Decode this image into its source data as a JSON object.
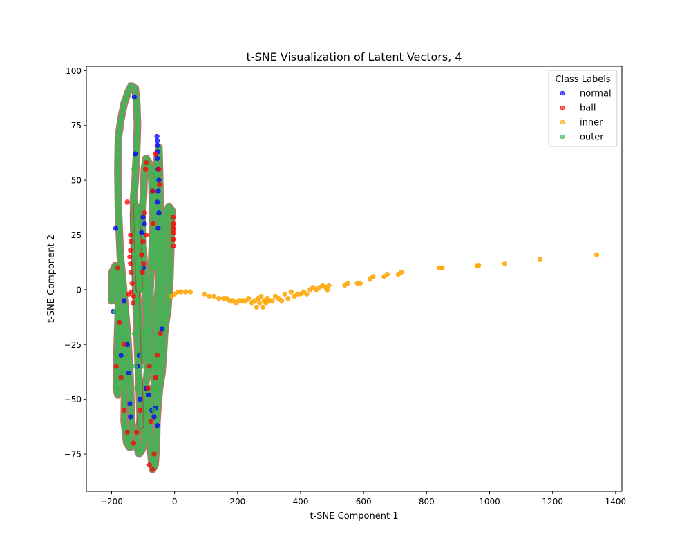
{
  "chart_data": {
    "type": "scatter",
    "title": "t-SNE Visualization of Latent Vectors, 4",
    "xlabel": "t-SNE Component 1",
    "ylabel": "t-SNE Component 2",
    "xlim": [
      -280,
      1420
    ],
    "ylim": [
      -92,
      102
    ],
    "xticks": [
      -200,
      0,
      200,
      400,
      600,
      800,
      1000,
      1200,
      1400
    ],
    "xtick_labels": [
      "−200",
      "0",
      "200",
      "400",
      "600",
      "800",
      "1000",
      "1200",
      "1400"
    ],
    "yticks": [
      -75,
      -50,
      -25,
      0,
      25,
      50,
      75,
      100
    ],
    "ytick_labels": [
      "−75",
      "−50",
      "−25",
      "0",
      "25",
      "50",
      "75",
      "100"
    ],
    "grid": false,
    "legend": {
      "title": "Class Labels",
      "position": "top-right"
    },
    "series": [
      {
        "name": "normal",
        "color": "#0000ff",
        "points": [
          [
            -56,
            70
          ],
          [
            -55,
            68
          ],
          [
            -54,
            66
          ],
          [
            -53,
            63
          ],
          [
            -55,
            60
          ],
          [
            -52,
            55
          ],
          [
            -50,
            50
          ],
          [
            -52,
            45
          ],
          [
            -55,
            40
          ],
          [
            -50,
            35
          ],
          [
            -52,
            28
          ],
          [
            -100,
            33
          ],
          [
            -95,
            30
          ],
          [
            -105,
            26
          ],
          [
            -187,
            28
          ],
          [
            -128,
            88
          ],
          [
            -125,
            62
          ],
          [
            -70,
            45
          ],
          [
            -55,
            -62
          ],
          [
            -60,
            -54
          ],
          [
            -112,
            -30
          ],
          [
            -118,
            -35
          ],
          [
            -142,
            -52
          ],
          [
            -140,
            -58
          ],
          [
            -145,
            -38
          ],
          [
            -110,
            -50
          ],
          [
            -90,
            -45
          ],
          [
            -160,
            -5
          ],
          [
            -195,
            -10
          ],
          [
            -82,
            -48
          ],
          [
            -72,
            -55
          ],
          [
            -65,
            -58
          ],
          [
            -40,
            -18
          ],
          [
            -100,
            10
          ],
          [
            -150,
            -25
          ],
          [
            -170,
            -30
          ]
        ]
      },
      {
        "name": "ball",
        "color": "#ff0000",
        "points": [
          [
            -5,
            33
          ],
          [
            -4,
            30
          ],
          [
            -4,
            28
          ],
          [
            -3,
            26
          ],
          [
            -4,
            23
          ],
          [
            -3,
            20
          ],
          [
            -140,
            25
          ],
          [
            -138,
            22
          ],
          [
            -140,
            18
          ],
          [
            -142,
            15
          ],
          [
            -140,
            12
          ],
          [
            -138,
            8
          ],
          [
            -135,
            3
          ],
          [
            -138,
            -1
          ],
          [
            -130,
            -3
          ],
          [
            -132,
            -6
          ],
          [
            -145,
            -2
          ],
          [
            -100,
            22
          ],
          [
            -105,
            16
          ],
          [
            -98,
            12
          ],
          [
            -102,
            8
          ],
          [
            -95,
            35
          ],
          [
            -90,
            25
          ],
          [
            -90,
            58
          ],
          [
            -92,
            55
          ],
          [
            -160,
            -25
          ],
          [
            -170,
            -40
          ],
          [
            -160,
            -55
          ],
          [
            -150,
            -65
          ],
          [
            -130,
            -70
          ],
          [
            -80,
            -80
          ],
          [
            -70,
            -82
          ],
          [
            -65,
            -75
          ],
          [
            -75,
            -60
          ],
          [
            -60,
            -40
          ],
          [
            -55,
            -30
          ],
          [
            -45,
            -20
          ],
          [
            -180,
            10
          ],
          [
            -175,
            -15
          ],
          [
            -185,
            -35
          ],
          [
            -110,
            -55
          ],
          [
            -120,
            -65
          ],
          [
            -85,
            -45
          ],
          [
            -80,
            -35
          ],
          [
            -50,
            55
          ],
          [
            -48,
            48
          ],
          [
            -60,
            62
          ],
          [
            -70,
            45
          ],
          [
            -68,
            30
          ],
          [
            -150,
            40
          ]
        ]
      },
      {
        "name": "inner",
        "color": "#ffa500",
        "points": [
          [
            -10,
            -3
          ],
          [
            0,
            -2
          ],
          [
            10,
            -1
          ],
          [
            20,
            -1
          ],
          [
            35,
            -1
          ],
          [
            50,
            -1
          ],
          [
            95,
            -2
          ],
          [
            110,
            -3
          ],
          [
            125,
            -3
          ],
          [
            140,
            -4
          ],
          [
            155,
            -4
          ],
          [
            165,
            -4
          ],
          [
            175,
            -5
          ],
          [
            185,
            -5
          ],
          [
            195,
            -6
          ],
          [
            205,
            -5
          ],
          [
            215,
            -5
          ],
          [
            225,
            -5
          ],
          [
            235,
            -4
          ],
          [
            245,
            -6
          ],
          [
            255,
            -5
          ],
          [
            260,
            -8
          ],
          [
            265,
            -4
          ],
          [
            270,
            -6
          ],
          [
            275,
            -3
          ],
          [
            280,
            -8
          ],
          [
            285,
            -5
          ],
          [
            290,
            -6
          ],
          [
            295,
            -4
          ],
          [
            300,
            -5
          ],
          [
            310,
            -5
          ],
          [
            320,
            -3
          ],
          [
            330,
            -4
          ],
          [
            340,
            -5
          ],
          [
            350,
            -2
          ],
          [
            360,
            -4
          ],
          [
            370,
            -1
          ],
          [
            380,
            -3
          ],
          [
            390,
            -2
          ],
          [
            400,
            -2
          ],
          [
            410,
            -1
          ],
          [
            420,
            -2
          ],
          [
            430,
            0
          ],
          [
            440,
            1
          ],
          [
            450,
            0
          ],
          [
            460,
            1
          ],
          [
            470,
            2
          ],
          [
            480,
            1
          ],
          [
            485,
            0
          ],
          [
            490,
            2
          ],
          [
            540,
            2
          ],
          [
            550,
            3
          ],
          [
            580,
            3
          ],
          [
            590,
            3
          ],
          [
            620,
            5
          ],
          [
            630,
            6
          ],
          [
            665,
            6
          ],
          [
            675,
            7
          ],
          [
            710,
            7
          ],
          [
            720,
            8
          ],
          [
            840,
            10
          ],
          [
            850,
            10
          ],
          [
            960,
            11
          ],
          [
            965,
            11
          ],
          [
            1048,
            12
          ],
          [
            1160,
            14
          ],
          [
            1340,
            16
          ]
        ]
      },
      {
        "name": "outer",
        "color": "#3cb34a",
        "points": [
          [
            -130,
            55
          ],
          [
            -125,
            40
          ],
          [
            -128,
            30
          ],
          [
            -122,
            25
          ],
          [
            -120,
            15
          ],
          [
            -115,
            5
          ],
          [
            -118,
            -5
          ],
          [
            -110,
            30
          ],
          [
            -112,
            20
          ],
          [
            -108,
            10
          ],
          [
            -105,
            0
          ],
          [
            -115,
            35
          ],
          [
            -128,
            -20
          ],
          [
            -125,
            -35
          ],
          [
            -120,
            -45
          ],
          [
            -110,
            -40
          ],
          [
            -105,
            -30
          ],
          [
            -100,
            -35
          ],
          [
            -95,
            -20
          ],
          [
            -190,
            -10
          ],
          [
            -185,
            -30
          ],
          [
            -180,
            -45
          ],
          [
            -175,
            -20
          ],
          [
            -170,
            0
          ],
          [
            -65,
            -55
          ],
          [
            -60,
            -45
          ],
          [
            -55,
            -35
          ]
        ]
      }
    ],
    "loops": [
      {
        "path": [
          [
            -200,
            -5
          ],
          [
            -198,
            8
          ],
          [
            -188,
            11
          ],
          [
            -182,
            4
          ],
          [
            -178,
            -8
          ],
          [
            -182,
            -25
          ],
          [
            -185,
            -45
          ],
          [
            -180,
            -48
          ],
          [
            -175,
            -40
          ],
          [
            -172,
            -20
          ],
          [
            -170,
            -10
          ],
          [
            -165,
            -12
          ],
          [
            -160,
            -25
          ],
          [
            -158,
            -40
          ],
          [
            -160,
            -60
          ],
          [
            -152,
            -70
          ],
          [
            -142,
            -72
          ],
          [
            -136,
            -62
          ],
          [
            -140,
            -45
          ],
          [
            -143,
            -35
          ],
          [
            -150,
            -20
          ],
          [
            -165,
            5
          ],
          [
            -172,
            15
          ],
          [
            -178,
            35
          ],
          [
            -180,
            55
          ],
          [
            -178,
            70
          ],
          [
            -170,
            78
          ],
          [
            -160,
            85
          ],
          [
            -148,
            90
          ],
          [
            -138,
            93
          ],
          [
            -125,
            92
          ],
          [
            -120,
            85
          ],
          [
            -118,
            75
          ],
          [
            -120,
            65
          ],
          [
            -125,
            50
          ],
          [
            -130,
            42
          ],
          [
            -130,
            30
          ],
          [
            -128,
            18
          ],
          [
            -125,
            10
          ],
          [
            -120,
            0
          ],
          [
            -112,
            -10
          ],
          [
            -105,
            -25
          ],
          [
            -100,
            -32
          ],
          [
            -92,
            -30
          ],
          [
            -88,
            -20
          ],
          [
            -90,
            -10
          ],
          [
            -94,
            5
          ],
          [
            -100,
            20
          ],
          [
            -102,
            35
          ],
          [
            -98,
            45
          ],
          [
            -96,
            55
          ],
          [
            -90,
            60
          ],
          [
            -82,
            58
          ],
          [
            -76,
            55
          ],
          [
            -72,
            50
          ],
          [
            -70,
            40
          ],
          [
            -68,
            30
          ],
          [
            -72,
            15
          ],
          [
            -78,
            0
          ],
          [
            -80,
            -15
          ],
          [
            -82,
            -30
          ],
          [
            -88,
            -40
          ],
          [
            -95,
            -45
          ],
          [
            -105,
            -55
          ],
          [
            -115,
            -65
          ],
          [
            -120,
            -72
          ],
          [
            -112,
            -75
          ],
          [
            -100,
            -72
          ],
          [
            -92,
            -65
          ],
          [
            -88,
            -55
          ],
          [
            -82,
            -45
          ],
          [
            -78,
            -55
          ],
          [
            -80,
            -65
          ],
          [
            -75,
            -75
          ],
          [
            -70,
            -82
          ],
          [
            -62,
            -80
          ],
          [
            -58,
            -72
          ],
          [
            -56,
            -60
          ],
          [
            -52,
            -52
          ],
          [
            -48,
            -45
          ],
          [
            -40,
            -38
          ],
          [
            -35,
            -28
          ],
          [
            -32,
            -20
          ],
          [
            -28,
            -15
          ],
          [
            -22,
            -10
          ],
          [
            -18,
            -2
          ],
          [
            -15,
            5
          ],
          [
            -12,
            20
          ],
          [
            -10,
            32
          ],
          [
            -8,
            36
          ],
          [
            -18,
            38
          ],
          [
            -28,
            34
          ],
          [
            -30,
            25
          ],
          [
            -32,
            15
          ],
          [
            -35,
            5
          ],
          [
            -38,
            -5
          ],
          [
            -42,
            -15
          ],
          [
            -48,
            -25
          ],
          [
            -52,
            -35
          ],
          [
            -55,
            -45
          ],
          [
            -58,
            -55
          ],
          [
            -62,
            -48
          ],
          [
            -66,
            -38
          ],
          [
            -62,
            -22
          ],
          [
            -58,
            -10
          ],
          [
            -52,
            0
          ],
          [
            -48,
            10
          ],
          [
            -46,
            25
          ],
          [
            -46,
            40
          ],
          [
            -48,
            55
          ],
          [
            -50,
            65
          ],
          [
            -55,
            60
          ],
          [
            -60,
            50
          ],
          [
            -62,
            40
          ],
          [
            -65,
            30
          ],
          [
            -62,
            20
          ],
          [
            -60,
            10
          ]
        ]
      },
      {
        "path": [
          [
            -130,
            35
          ],
          [
            -128,
            25
          ],
          [
            -126,
            15
          ],
          [
            -124,
            5
          ],
          [
            -122,
            -5
          ],
          [
            -120,
            -15
          ],
          [
            -118,
            -25
          ],
          [
            -115,
            -35
          ],
          [
            -112,
            -45
          ],
          [
            -110,
            -55
          ],
          [
            -108,
            -62
          ]
        ]
      },
      {
        "path": [
          [
            -120,
            38
          ],
          [
            -118,
            28
          ],
          [
            -116,
            18
          ],
          [
            -114,
            8
          ],
          [
            -112,
            0
          ]
        ]
      }
    ]
  }
}
